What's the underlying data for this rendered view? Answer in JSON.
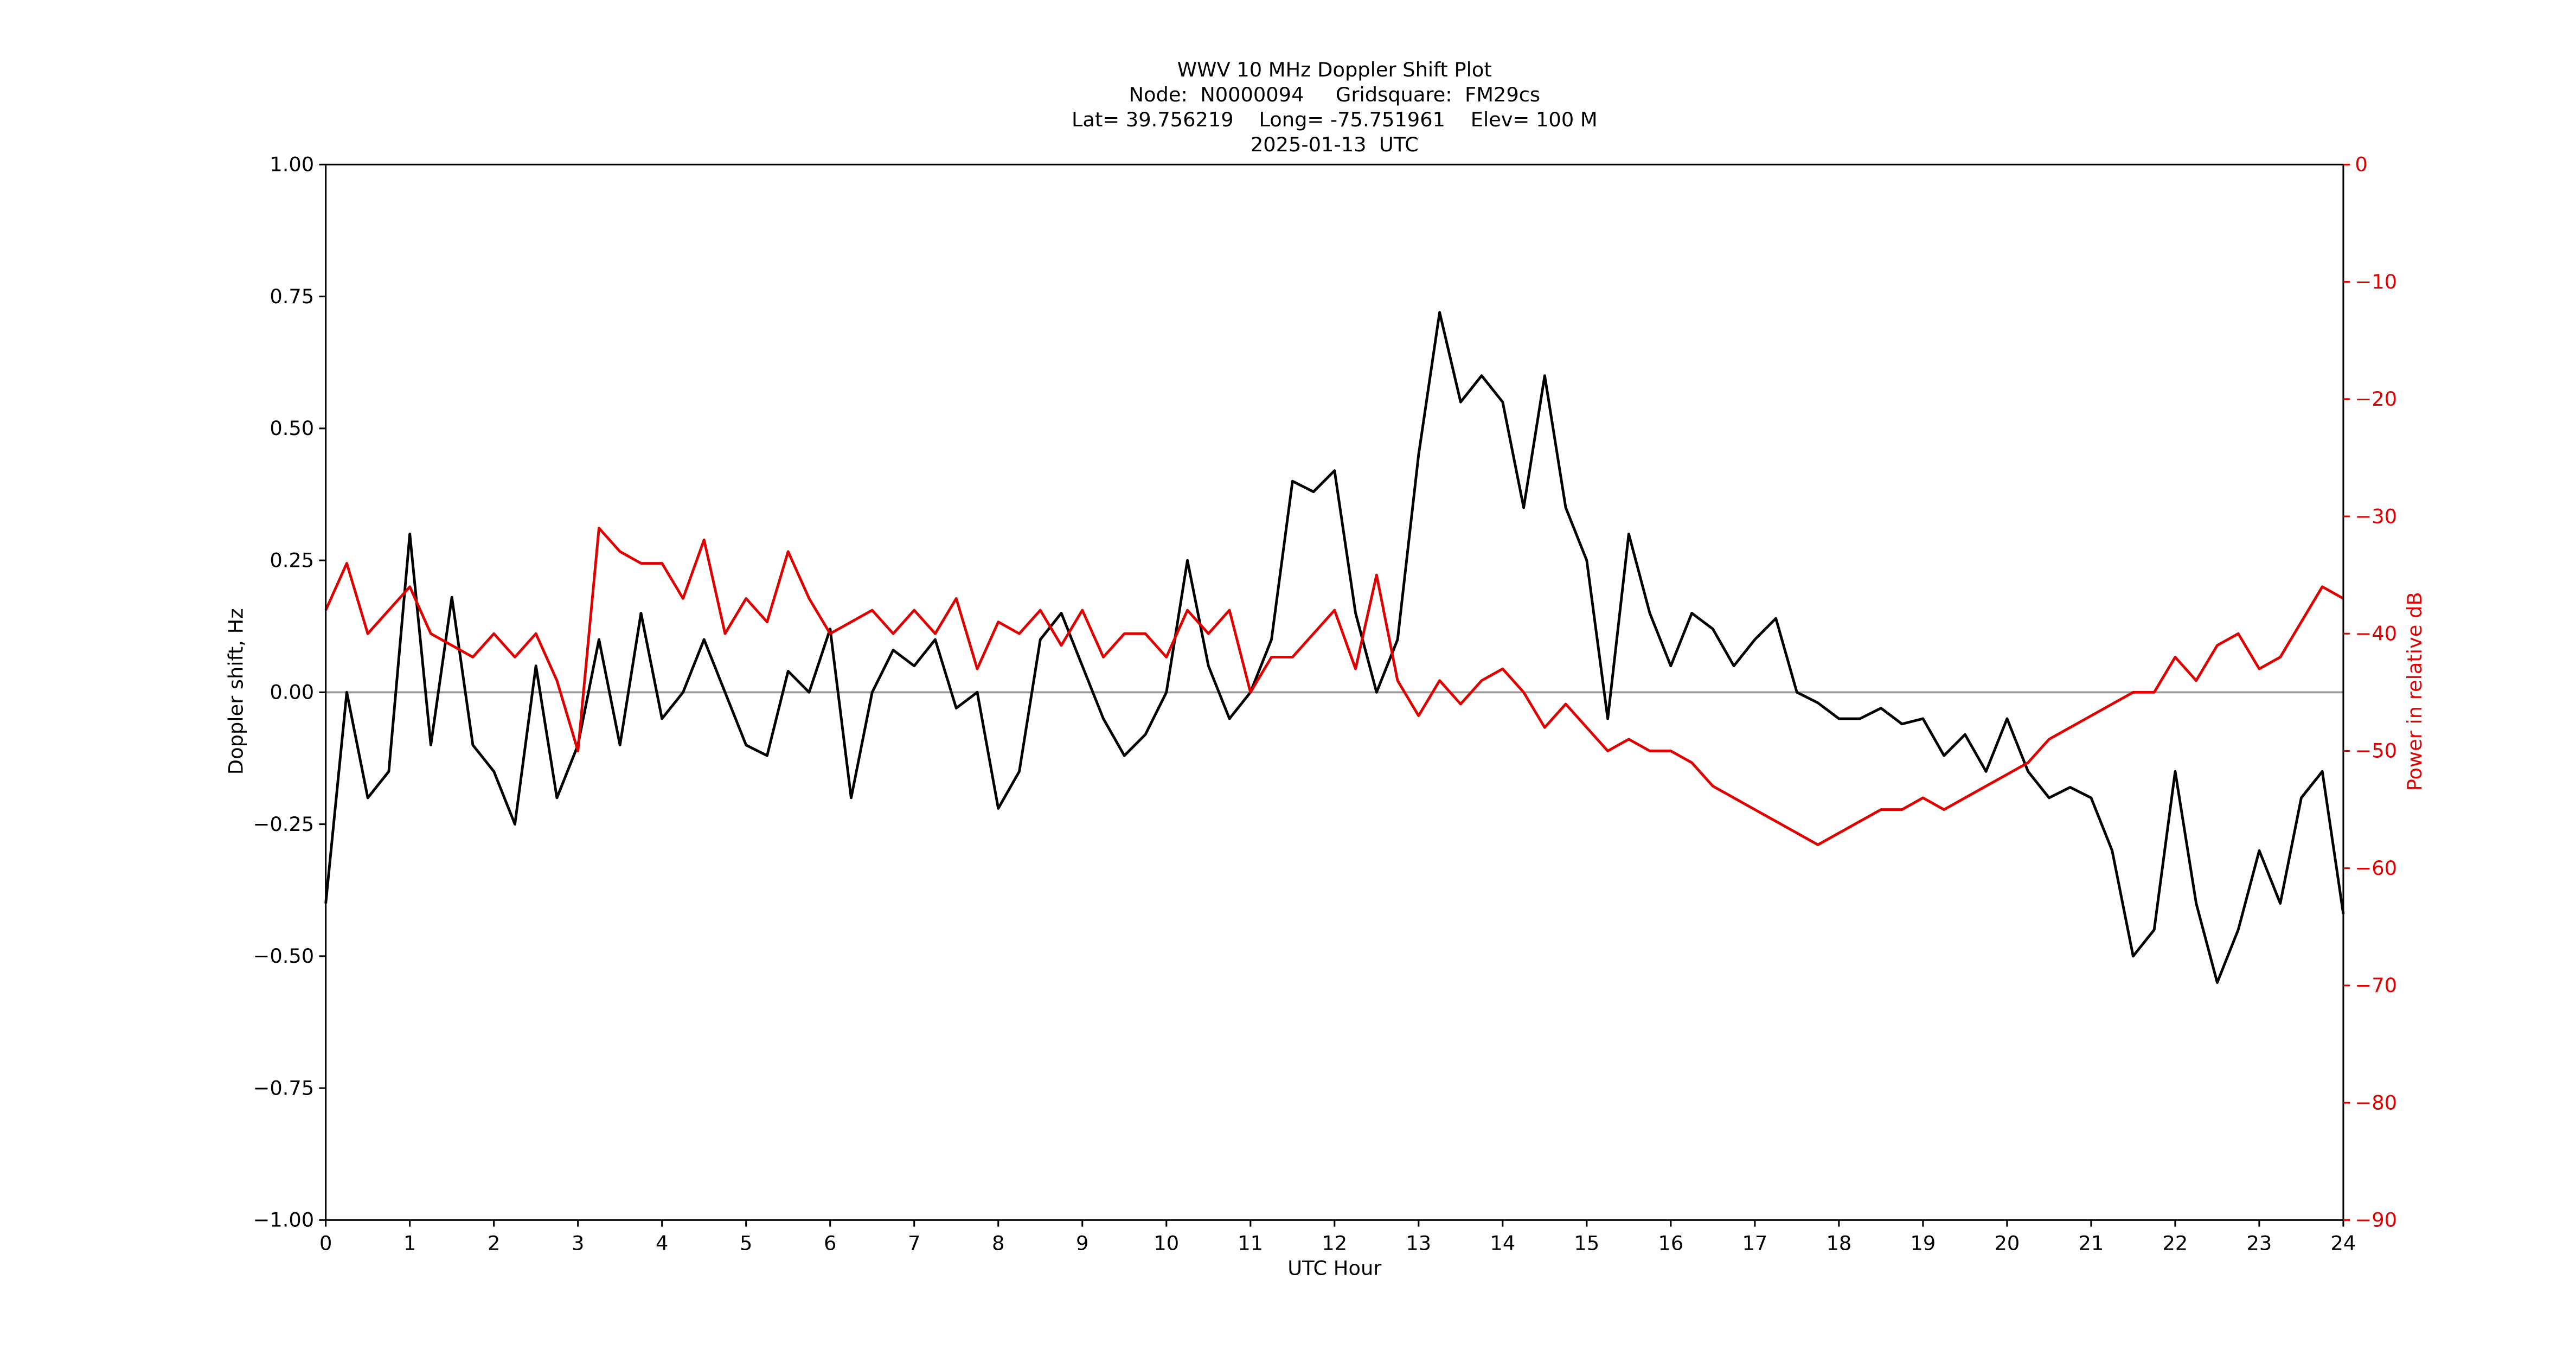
{
  "chart_data": {
    "type": "line",
    "title": [
      "WWV 10 MHz Doppler Shift Plot",
      "Node:  N0000094     Gridsquare:  FM29cs",
      "Lat= 39.756219    Long= -75.751961    Elev= 100 M",
      "2025-01-13  UTC"
    ],
    "x_label": "UTC Hour",
    "y_label": "Doppler shift, Hz",
    "y2_label": "Power in relative dB",
    "y2_color": "#e00000",
    "xlim": [
      0,
      24
    ],
    "xticks": [
      0,
      1,
      2,
      3,
      4,
      5,
      6,
      7,
      8,
      9,
      10,
      11,
      12,
      13,
      14,
      15,
      16,
      17,
      18,
      19,
      20,
      21,
      22,
      23,
      24
    ],
    "ylim": [
      -1,
      1
    ],
    "yticks": [
      {
        "value": -1,
        "label": "−1.00"
      },
      {
        "value": -0.75,
        "label": "−0.75"
      },
      {
        "value": -0.5,
        "label": "−0.50"
      },
      {
        "value": -0.25,
        "label": "−0.25"
      },
      {
        "value": 0,
        "label": "0.00"
      },
      {
        "value": 0.25,
        "label": "0.25"
      },
      {
        "value": 0.5,
        "label": "0.50"
      },
      {
        "value": 0.75,
        "label": "0.75"
      },
      {
        "value": 1,
        "label": "1.00"
      }
    ],
    "y2lim": [
      -90,
      0
    ],
    "y2ticks": [
      {
        "value": -90,
        "label": "−90"
      },
      {
        "value": -80,
        "label": "−80"
      },
      {
        "value": -70,
        "label": "−70"
      },
      {
        "value": -60,
        "label": "−60"
      },
      {
        "value": -50,
        "label": "−50"
      },
      {
        "value": -40,
        "label": "−40"
      },
      {
        "value": -30,
        "label": "−30"
      },
      {
        "value": -20,
        "label": "−20"
      },
      {
        "value": -10,
        "label": "−10"
      },
      {
        "value": 0,
        "label": "0"
      }
    ],
    "hline": 0,
    "hline_color": "#999999",
    "x": [
      0,
      0.25,
      0.5,
      0.75,
      1,
      1.25,
      1.5,
      1.75,
      2,
      2.25,
      2.5,
      2.75,
      3,
      3.25,
      3.5,
      3.75,
      4,
      4.25,
      4.5,
      4.75,
      5,
      5.25,
      5.5,
      5.75,
      6,
      6.25,
      6.5,
      6.75,
      7,
      7.25,
      7.5,
      7.75,
      8,
      8.25,
      8.5,
      8.75,
      9,
      9.25,
      9.5,
      9.75,
      10,
      10.25,
      10.5,
      10.75,
      11,
      11.25,
      11.5,
      11.75,
      12,
      12.25,
      12.5,
      12.75,
      13,
      13.25,
      13.5,
      13.75,
      14,
      14.25,
      14.5,
      14.75,
      15,
      15.25,
      15.5,
      15.75,
      16,
      16.25,
      16.5,
      16.75,
      17,
      17.25,
      17.5,
      17.75,
      18,
      18.25,
      18.5,
      18.75,
      19,
      19.25,
      19.5,
      19.75,
      20,
      20.25,
      20.5,
      20.75,
      21,
      21.25,
      21.5,
      21.75,
      22,
      22.25,
      22.5,
      22.75,
      23,
      23.25,
      23.5,
      23.75,
      24
    ],
    "series": [
      {
        "name": "Doppler shift",
        "color": "#000000",
        "values": [
          -0.4,
          0.0,
          -0.2,
          -0.15,
          0.3,
          -0.1,
          0.18,
          -0.1,
          -0.15,
          -0.25,
          0.05,
          -0.2,
          -0.1,
          0.1,
          -0.1,
          0.15,
          -0.05,
          0.0,
          0.1,
          0.0,
          -0.1,
          -0.12,
          0.04,
          0.0,
          0.12,
          -0.2,
          0.0,
          0.08,
          0.05,
          0.1,
          -0.03,
          0.0,
          -0.22,
          -0.15,
          0.1,
          0.15,
          0.05,
          -0.05,
          -0.12,
          -0.08,
          0.0,
          0.25,
          0.05,
          -0.05,
          0.0,
          0.1,
          0.4,
          0.38,
          0.42,
          0.15,
          0.0,
          0.1,
          0.45,
          0.72,
          0.55,
          0.6,
          0.55,
          0.35,
          0.6,
          0.35,
          0.25,
          -0.05,
          0.3,
          0.15,
          0.05,
          0.15,
          0.12,
          0.05,
          0.1,
          0.14,
          0.0,
          -0.02,
          -0.05,
          -0.05,
          -0.03,
          -0.06,
          -0.05,
          -0.12,
          -0.08,
          -0.15,
          -0.05,
          -0.15,
          -0.2,
          -0.18,
          -0.2,
          -0.3,
          -0.5,
          -0.45,
          -0.15,
          -0.4,
          -0.55,
          -0.45,
          -0.3,
          -0.4,
          -0.2,
          -0.15,
          -0.42
        ]
      },
      {
        "name": "Power",
        "color": "#e00000",
        "axis": "y2",
        "values": [
          -38,
          -34,
          -40,
          -38,
          -36,
          -40,
          -41,
          -42,
          -40,
          -42,
          -40,
          -44,
          -50,
          -31,
          -33,
          -34,
          -34,
          -37,
          -32,
          -40,
          -37,
          -39,
          -33,
          -37,
          -40,
          -39,
          -38,
          -40,
          -38,
          -40,
          -37,
          -43,
          -39,
          -40,
          -38,
          -41,
          -38,
          -42,
          -40,
          -40,
          -42,
          -38,
          -40,
          -38,
          -45,
          -42,
          -42,
          -40,
          -38,
          -43,
          -35,
          -44,
          -47,
          -44,
          -46,
          -44,
          -43,
          -45,
          -48,
          -46,
          -48,
          -50,
          -49,
          -50,
          -50,
          -51,
          -53,
          -54,
          -55,
          -56,
          -57,
          -58,
          -57,
          -56,
          -55,
          -55,
          -54,
          -55,
          -54,
          -53,
          -52,
          -51,
          -49,
          -48,
          -47,
          -46,
          -45,
          -45,
          -42,
          -44,
          -41,
          -40,
          -43,
          -42,
          -39,
          -36,
          -37
        ]
      }
    ]
  }
}
